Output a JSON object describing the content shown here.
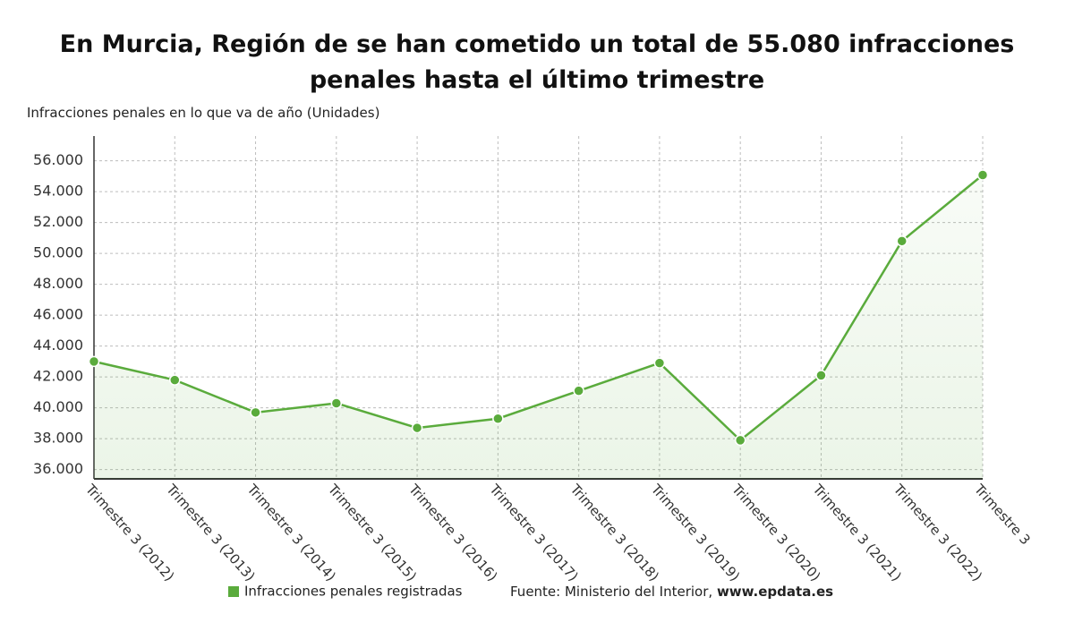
{
  "chart_data": {
    "type": "line",
    "title": "En Murcia, Región de se han cometido un total de 55.080 infracciones penales hasta el último trimestre",
    "y_label": "Infracciones penales en lo que va de año (Unidades)",
    "categories": [
      "Trimestre 3 (2012)",
      "Trimestre 3 (2013)",
      "Trimestre 3 (2014)",
      "Trimestre 3 (2015)",
      "Trimestre 3 (2016)",
      "Trimestre 3 (2017)",
      "Trimestre 3 (2018)",
      "Trimestre 3 (2019)",
      "Trimestre 3 (2020)",
      "Trimestre 3 (2021)",
      "Trimestre 3 (2022)",
      "Trimestre 3"
    ],
    "series": [
      {
        "name": "Infracciones penales registradas",
        "color": "#5aab3c",
        "values": [
          43000,
          41800,
          39700,
          40300,
          38700,
          39300,
          41100,
          42900,
          37900,
          42100,
          50800,
          55080
        ]
      }
    ],
    "ylim": [
      35400,
      57600
    ],
    "yticks": [
      {
        "value": 36000,
        "label": "36.000"
      },
      {
        "value": 38000,
        "label": "38.000"
      },
      {
        "value": 40000,
        "label": "40.000"
      },
      {
        "value": 42000,
        "label": "42.000"
      },
      {
        "value": 44000,
        "label": "44.000"
      },
      {
        "value": 46000,
        "label": "46.000"
      },
      {
        "value": 48000,
        "label": "48.000"
      },
      {
        "value": 50000,
        "label": "50.000"
      },
      {
        "value": 52000,
        "label": "52.000"
      },
      {
        "value": 54000,
        "label": "54.000"
      },
      {
        "value": 56000,
        "label": "56.000"
      }
    ],
    "grid": true,
    "source": {
      "text": "Fuente: Ministerio del Interior,",
      "site": "www.epdata.es"
    }
  }
}
